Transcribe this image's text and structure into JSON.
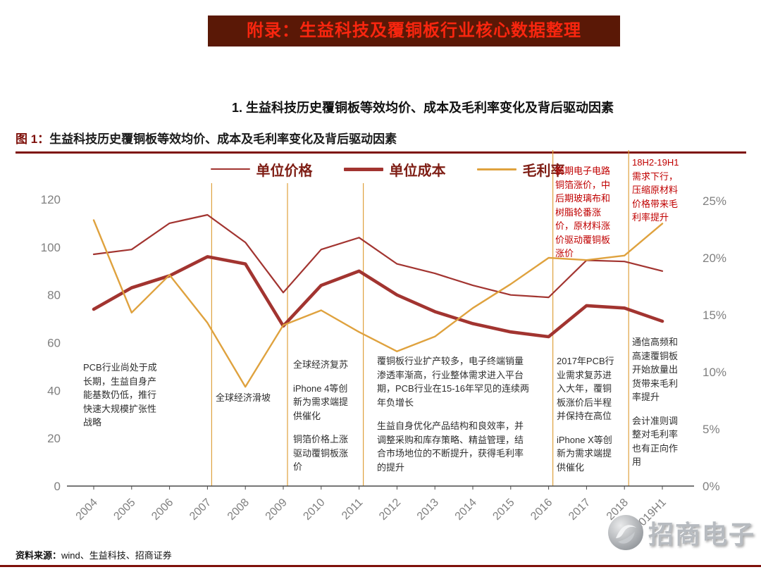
{
  "page": {
    "banner_title": "附录：生益科技及覆铜板行业核心数据整理",
    "section_title": "1. 生益科技历史覆铜板等效均价、成本及毛利率变化及背后驱动因素",
    "figure_label": "图 1：",
    "figure_title": "生益科技历史覆铜板等效均价、成本及毛利率变化及背后驱动因素",
    "source_label": "资料来源：",
    "source_text": "wind、生益科技、招商证券",
    "watermark_text": "招商电子"
  },
  "colors": {
    "banner_bg": "#5a1806",
    "banner_text": "#f9260f",
    "dark_red": "#7e100a",
    "price_line": "#a23430",
    "cost_line": "#a23430",
    "margin_line": "#dfa23e",
    "annotation_red": "#c00000",
    "axis_text": "#808080"
  },
  "chart_data": {
    "type": "line",
    "title": "生益科技历史覆铜板等效均价、成本及毛利率变化及背后驱动因素",
    "categories": [
      "2004",
      "2005",
      "2006",
      "2007",
      "2008",
      "2009",
      "2010",
      "2011",
      "2012",
      "2013",
      "2014",
      "2015",
      "2016",
      "2017",
      "2018",
      "2019H1"
    ],
    "series": [
      {
        "key": "price",
        "name": "单位价格",
        "axis": "left",
        "values": [
          97,
          99,
          110,
          113.5,
          102,
          81,
          99,
          104,
          93,
          89,
          84,
          80,
          79,
          94.5,
          94,
          90
        ]
      },
      {
        "key": "cost",
        "name": "单位成本",
        "axis": "left",
        "values": [
          74,
          83,
          88,
          96,
          93,
          67,
          84,
          90,
          80,
          73,
          68,
          64.5,
          62.5,
          75.5,
          74.5,
          69
        ]
      },
      {
        "key": "margin",
        "name": "毛利率",
        "axis": "right",
        "values": [
          23.3,
          15.2,
          18.5,
          14.3,
          8.7,
          14.1,
          15.4,
          13.5,
          11.8,
          13.1,
          15.6,
          17.7,
          20,
          19.8,
          20.2,
          23
        ]
      }
    ],
    "left_axis": {
      "min": 0,
      "max": 120,
      "step": 20
    },
    "right_axis": {
      "min": 0,
      "max": 25,
      "step": 5,
      "suffix": "%"
    },
    "dividers": [
      "2007",
      "2009",
      "2011",
      "2016",
      "2018"
    ],
    "legend_position": "top",
    "grid": false
  },
  "annotations": {
    "early_growth": "PCB行业尚处于成长期，生益自身产能基数仍低，推行快速大规模扩张性战略",
    "slump": "全球经济滑坡",
    "recovery": [
      "全球经济复苏",
      "iPhone 4等创新为需求端提供催化",
      "铜箔价格上涨驱动覆铜板涨价"
    ],
    "platform": [
      "覆铜板行业扩产较多，电子终端销量渗透率渐高，行业整体需求进入平台期，PCB行业在15-16年罕见的连续两年负增长",
      "生益自身优化产品结构和良效率，并调整采购和库存策略、精益管理，结合市场地位的不断提升，获得毛利率的提升"
    ],
    "year2017": [
      "2017年PCB行业需求复苏进入大年，覆铜板涨价后半程并保持在高位",
      "iPhone X等创新为需求端提供催化"
    ],
    "raw_material_rise": "前期电子电路铜箔涨价，中后期玻璃布和树脂轮番涨价，原材料涨价驱动覆铜板涨价",
    "h2_2018": "18H2-19H1需求下行，压缩原材料价格带来毛利率提升",
    "high_speed": [
      "通信高频和高速覆铜板开始放量出货带来毛利率提升",
      "会计准则调整对毛利率也有正向作用"
    ]
  }
}
